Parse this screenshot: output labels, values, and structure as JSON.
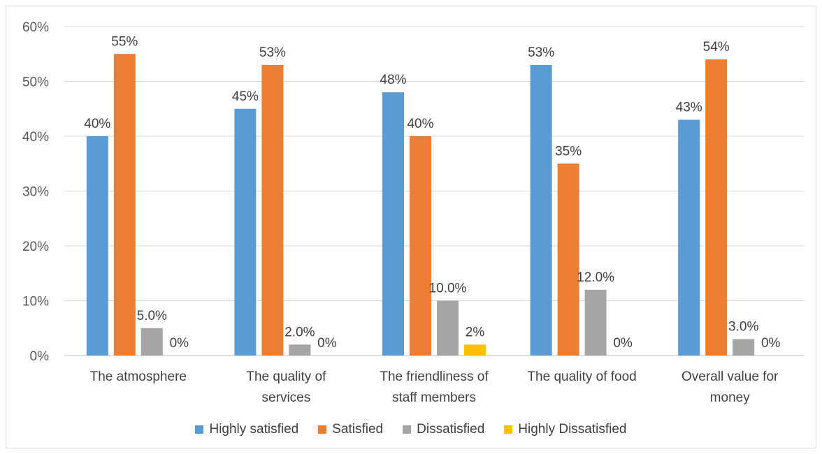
{
  "chart_data": {
    "type": "bar",
    "title": "",
    "xlabel": "",
    "ylabel": "",
    "ylim": [
      0,
      60
    ],
    "yticks": [
      "0%",
      "10%",
      "20%",
      "30%",
      "40%",
      "50%",
      "60%"
    ],
    "grid": true,
    "legend_position": "bottom",
    "categories": [
      [
        "The atmosphere"
      ],
      [
        "The quality of",
        "services"
      ],
      [
        "The friendliness of",
        "staff members"
      ],
      [
        "The quality of food"
      ],
      [
        "Overall value for",
        "money"
      ]
    ],
    "series": [
      {
        "name": "Highly satisfied",
        "color": "#5b9bd5",
        "values": [
          40,
          45,
          48,
          53,
          43
        ],
        "labels": [
          "40%",
          "45%",
          "48%",
          "53%",
          "43%"
        ]
      },
      {
        "name": "Satisfied",
        "color": "#ed7d31",
        "values": [
          55,
          53,
          40,
          35,
          54
        ],
        "labels": [
          "55%",
          "53%",
          "40%",
          "35%",
          "54%"
        ]
      },
      {
        "name": "Dissatisfied",
        "color": "#a5a5a5",
        "values": [
          5,
          2,
          10,
          12,
          3
        ],
        "labels": [
          "5.0%",
          "2.0%",
          "10.0%",
          "12.0%",
          "3.0%"
        ]
      },
      {
        "name": "Highly Dissatisfied",
        "color": "#ffc000",
        "values": [
          0,
          0,
          2,
          0,
          0
        ],
        "labels": [
          "0%",
          "0%",
          "2%",
          "0%",
          "0%"
        ]
      }
    ]
  }
}
